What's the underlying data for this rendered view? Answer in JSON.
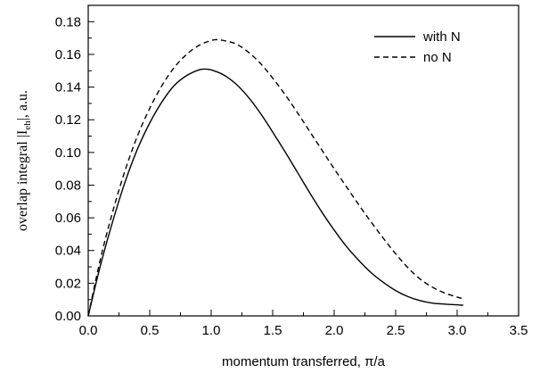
{
  "chart_data": {
    "type": "line",
    "title": "",
    "xlabel": "momentum transferred,  π/a",
    "ylabel": "overlap integral |I eh|, a.u.",
    "ylabel_parts": {
      "pre": "overlap integral |I",
      "sub": "eh",
      "post": "|, a.u."
    },
    "xlim": [
      0.0,
      3.5
    ],
    "ylim": [
      0.0,
      0.19
    ],
    "x_ticks": [
      "0.0",
      "0.5",
      "1.0",
      "1.5",
      "2.0",
      "2.5",
      "3.0",
      "3.5"
    ],
    "y_ticks": [
      "0.00",
      "0.02",
      "0.04",
      "0.06",
      "0.08",
      "0.10",
      "0.12",
      "0.14",
      "0.16",
      "0.18"
    ],
    "grid": false,
    "legend_position": "top-right",
    "series": [
      {
        "name": "with N",
        "style": "solid",
        "color": "#000000",
        "x": [
          0.0,
          0.1,
          0.2,
          0.3,
          0.4,
          0.5,
          0.6,
          0.7,
          0.8,
          0.9,
          0.95,
          1.0,
          1.1,
          1.2,
          1.3,
          1.4,
          1.5,
          1.6,
          1.7,
          1.8,
          1.9,
          2.0,
          2.1,
          2.2,
          2.3,
          2.4,
          2.5,
          2.6,
          2.7,
          2.8,
          2.9,
          3.0,
          3.05
        ],
        "y": [
          0.0,
          0.031,
          0.058,
          0.082,
          0.102,
          0.118,
          0.131,
          0.141,
          0.147,
          0.1505,
          0.151,
          0.1505,
          0.1475,
          0.142,
          0.134,
          0.124,
          0.1125,
          0.1005,
          0.088,
          0.0755,
          0.0635,
          0.0525,
          0.0425,
          0.034,
          0.0265,
          0.0205,
          0.0155,
          0.0118,
          0.0093,
          0.0078,
          0.0072,
          0.0068,
          0.0065
        ]
      },
      {
        "name": "no N",
        "style": "dashed",
        "color": "#000000",
        "x": [
          0.0,
          0.1,
          0.2,
          0.3,
          0.4,
          0.5,
          0.6,
          0.7,
          0.8,
          0.9,
          1.0,
          1.05,
          1.1,
          1.2,
          1.3,
          1.4,
          1.5,
          1.6,
          1.7,
          1.8,
          1.9,
          2.0,
          2.1,
          2.2,
          2.3,
          2.4,
          2.5,
          2.6,
          2.7,
          2.8,
          2.9,
          3.0,
          3.05
        ],
        "y": [
          0.0,
          0.035,
          0.064,
          0.089,
          0.11,
          0.127,
          0.141,
          0.152,
          0.16,
          0.1655,
          0.1685,
          0.169,
          0.1685,
          0.1665,
          0.1615,
          0.1545,
          0.1455,
          0.1355,
          0.1245,
          0.113,
          0.1015,
          0.09,
          0.079,
          0.068,
          0.0575,
          0.0475,
          0.038,
          0.0295,
          0.0225,
          0.0175,
          0.014,
          0.0115,
          0.0105
        ]
      }
    ]
  }
}
